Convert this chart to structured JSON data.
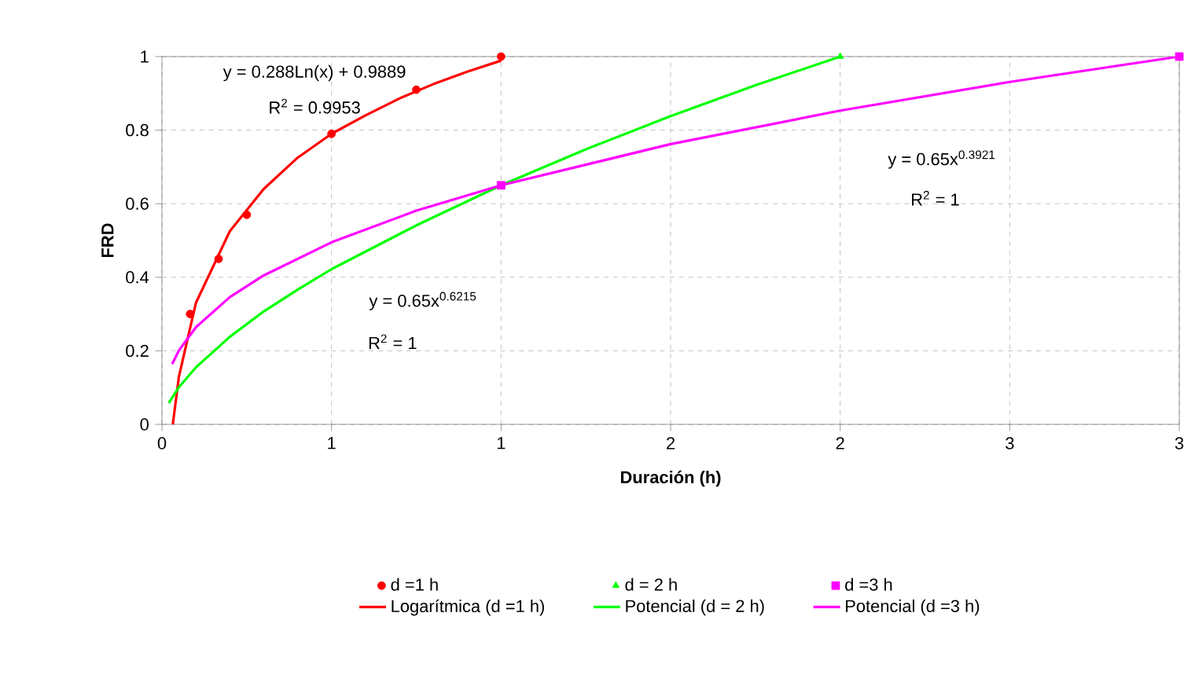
{
  "chart_data": {
    "type": "line",
    "xlabel": "Duración (h)",
    "ylabel": "FRD",
    "xlim": [
      0,
      3
    ],
    "ylim": [
      0,
      1
    ],
    "xticks": [
      0,
      {
        "value": 0.5,
        "label": "1"
      },
      1,
      {
        "value": 1.5,
        "label": "2"
      },
      2,
      {
        "value": 2.5,
        "label": "3"
      },
      3
    ],
    "yticks": [
      0,
      0.2,
      0.4,
      0.6,
      0.8,
      1
    ],
    "grid": true,
    "legend": "bottom",
    "annotations": [
      "y = 0.288Ln(x) + 0.9889",
      "R$^{2}$ = 0.9953",
      "y = 0.65x$^{0.6215}$",
      "R$^{2}$ = 1",
      "y = 0.65x$^{0.3921}$",
      "R$^{2}$ = 1"
    ],
    "series": [
      {
        "name": "d =1 h",
        "type": "scatter",
        "marker": "circle",
        "color": "#ff0000",
        "x": [
          0.083,
          0.167,
          0.25,
          0.5,
          0.75,
          1
        ],
        "values": [
          0.3,
          0.45,
          0.57,
          0.79,
          0.91,
          1.0
        ]
      },
      {
        "name": "d = 2 h",
        "type": "scatter",
        "marker": "triangle",
        "color": "#00ff00",
        "x": [
          2
        ],
        "values": [
          1.0
        ]
      },
      {
        "name": "d =3 h",
        "type": "scatter",
        "marker": "square",
        "color": "#ff00ff",
        "x": [
          1,
          3
        ],
        "values": [
          0.65,
          1.0
        ]
      },
      {
        "name": "Logarítmica (d =1 h)",
        "color": "#ff0000",
        "x": [
          0.032,
          0.05,
          0.1,
          0.2,
          0.3,
          0.4,
          0.5,
          0.6,
          0.7,
          0.8,
          0.9,
          1.0
        ],
        "values": [
          0.0,
          0.13,
          0.33,
          0.525,
          0.64,
          0.725,
          0.79,
          0.84,
          0.886,
          0.925,
          0.959,
          0.989
        ]
      },
      {
        "name": "Potencial (d = 2 h)",
        "color": "#00ff00",
        "x": [
          0.02,
          0.05,
          0.1,
          0.2,
          0.3,
          0.4,
          0.5,
          0.75,
          1,
          1.25,
          1.5,
          1.75,
          2
        ],
        "values": [
          0.058,
          0.101,
          0.155,
          0.238,
          0.307,
          0.366,
          0.422,
          0.541,
          0.65,
          0.748,
          0.838,
          0.922,
          1.0
        ]
      },
      {
        "name": "Potencial (d =3 h)",
        "color": "#ff00ff",
        "x": [
          0.03,
          0.05,
          0.1,
          0.2,
          0.3,
          0.5,
          0.75,
          1,
          1.5,
          2,
          2.5,
          3
        ],
        "values": [
          0.164,
          0.201,
          0.264,
          0.346,
          0.405,
          0.495,
          0.581,
          0.65,
          0.762,
          0.853,
          0.931,
          1.0
        ]
      }
    ]
  }
}
